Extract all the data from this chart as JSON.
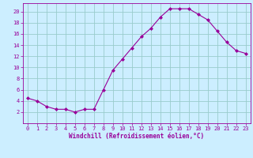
{
  "x": [
    0,
    1,
    2,
    3,
    4,
    5,
    6,
    7,
    8,
    9,
    10,
    11,
    12,
    13,
    14,
    15,
    16,
    17,
    18,
    19,
    20,
    21,
    22,
    23
  ],
  "y": [
    4.5,
    4.0,
    3.0,
    2.5,
    2.5,
    2.0,
    2.5,
    2.5,
    6.0,
    9.5,
    11.5,
    13.5,
    15.5,
    17.0,
    19.0,
    20.5,
    20.5,
    20.5,
    19.5,
    18.5,
    16.5,
    14.5,
    13.0,
    12.5
  ],
  "line_color": "#990099",
  "marker": "D",
  "marker_size": 2.0,
  "bg_color": "#cceeff",
  "grid_color": "#99cccc",
  "xlabel": "Windchill (Refroidissement éolien,°C)",
  "xlabel_color": "#990099",
  "tick_color": "#990099",
  "spine_color": "#990099",
  "ylim": [
    0,
    21.5
  ],
  "xlim": [
    -0.5,
    23.5
  ],
  "yticks": [
    2,
    4,
    6,
    8,
    10,
    12,
    14,
    16,
    18,
    20
  ],
  "xticks": [
    0,
    1,
    2,
    3,
    4,
    5,
    6,
    7,
    8,
    9,
    10,
    11,
    12,
    13,
    14,
    15,
    16,
    17,
    18,
    19,
    20,
    21,
    22,
    23
  ],
  "tick_fontsize": 5.0,
  "xlabel_fontsize": 5.5,
  "linewidth": 0.8
}
